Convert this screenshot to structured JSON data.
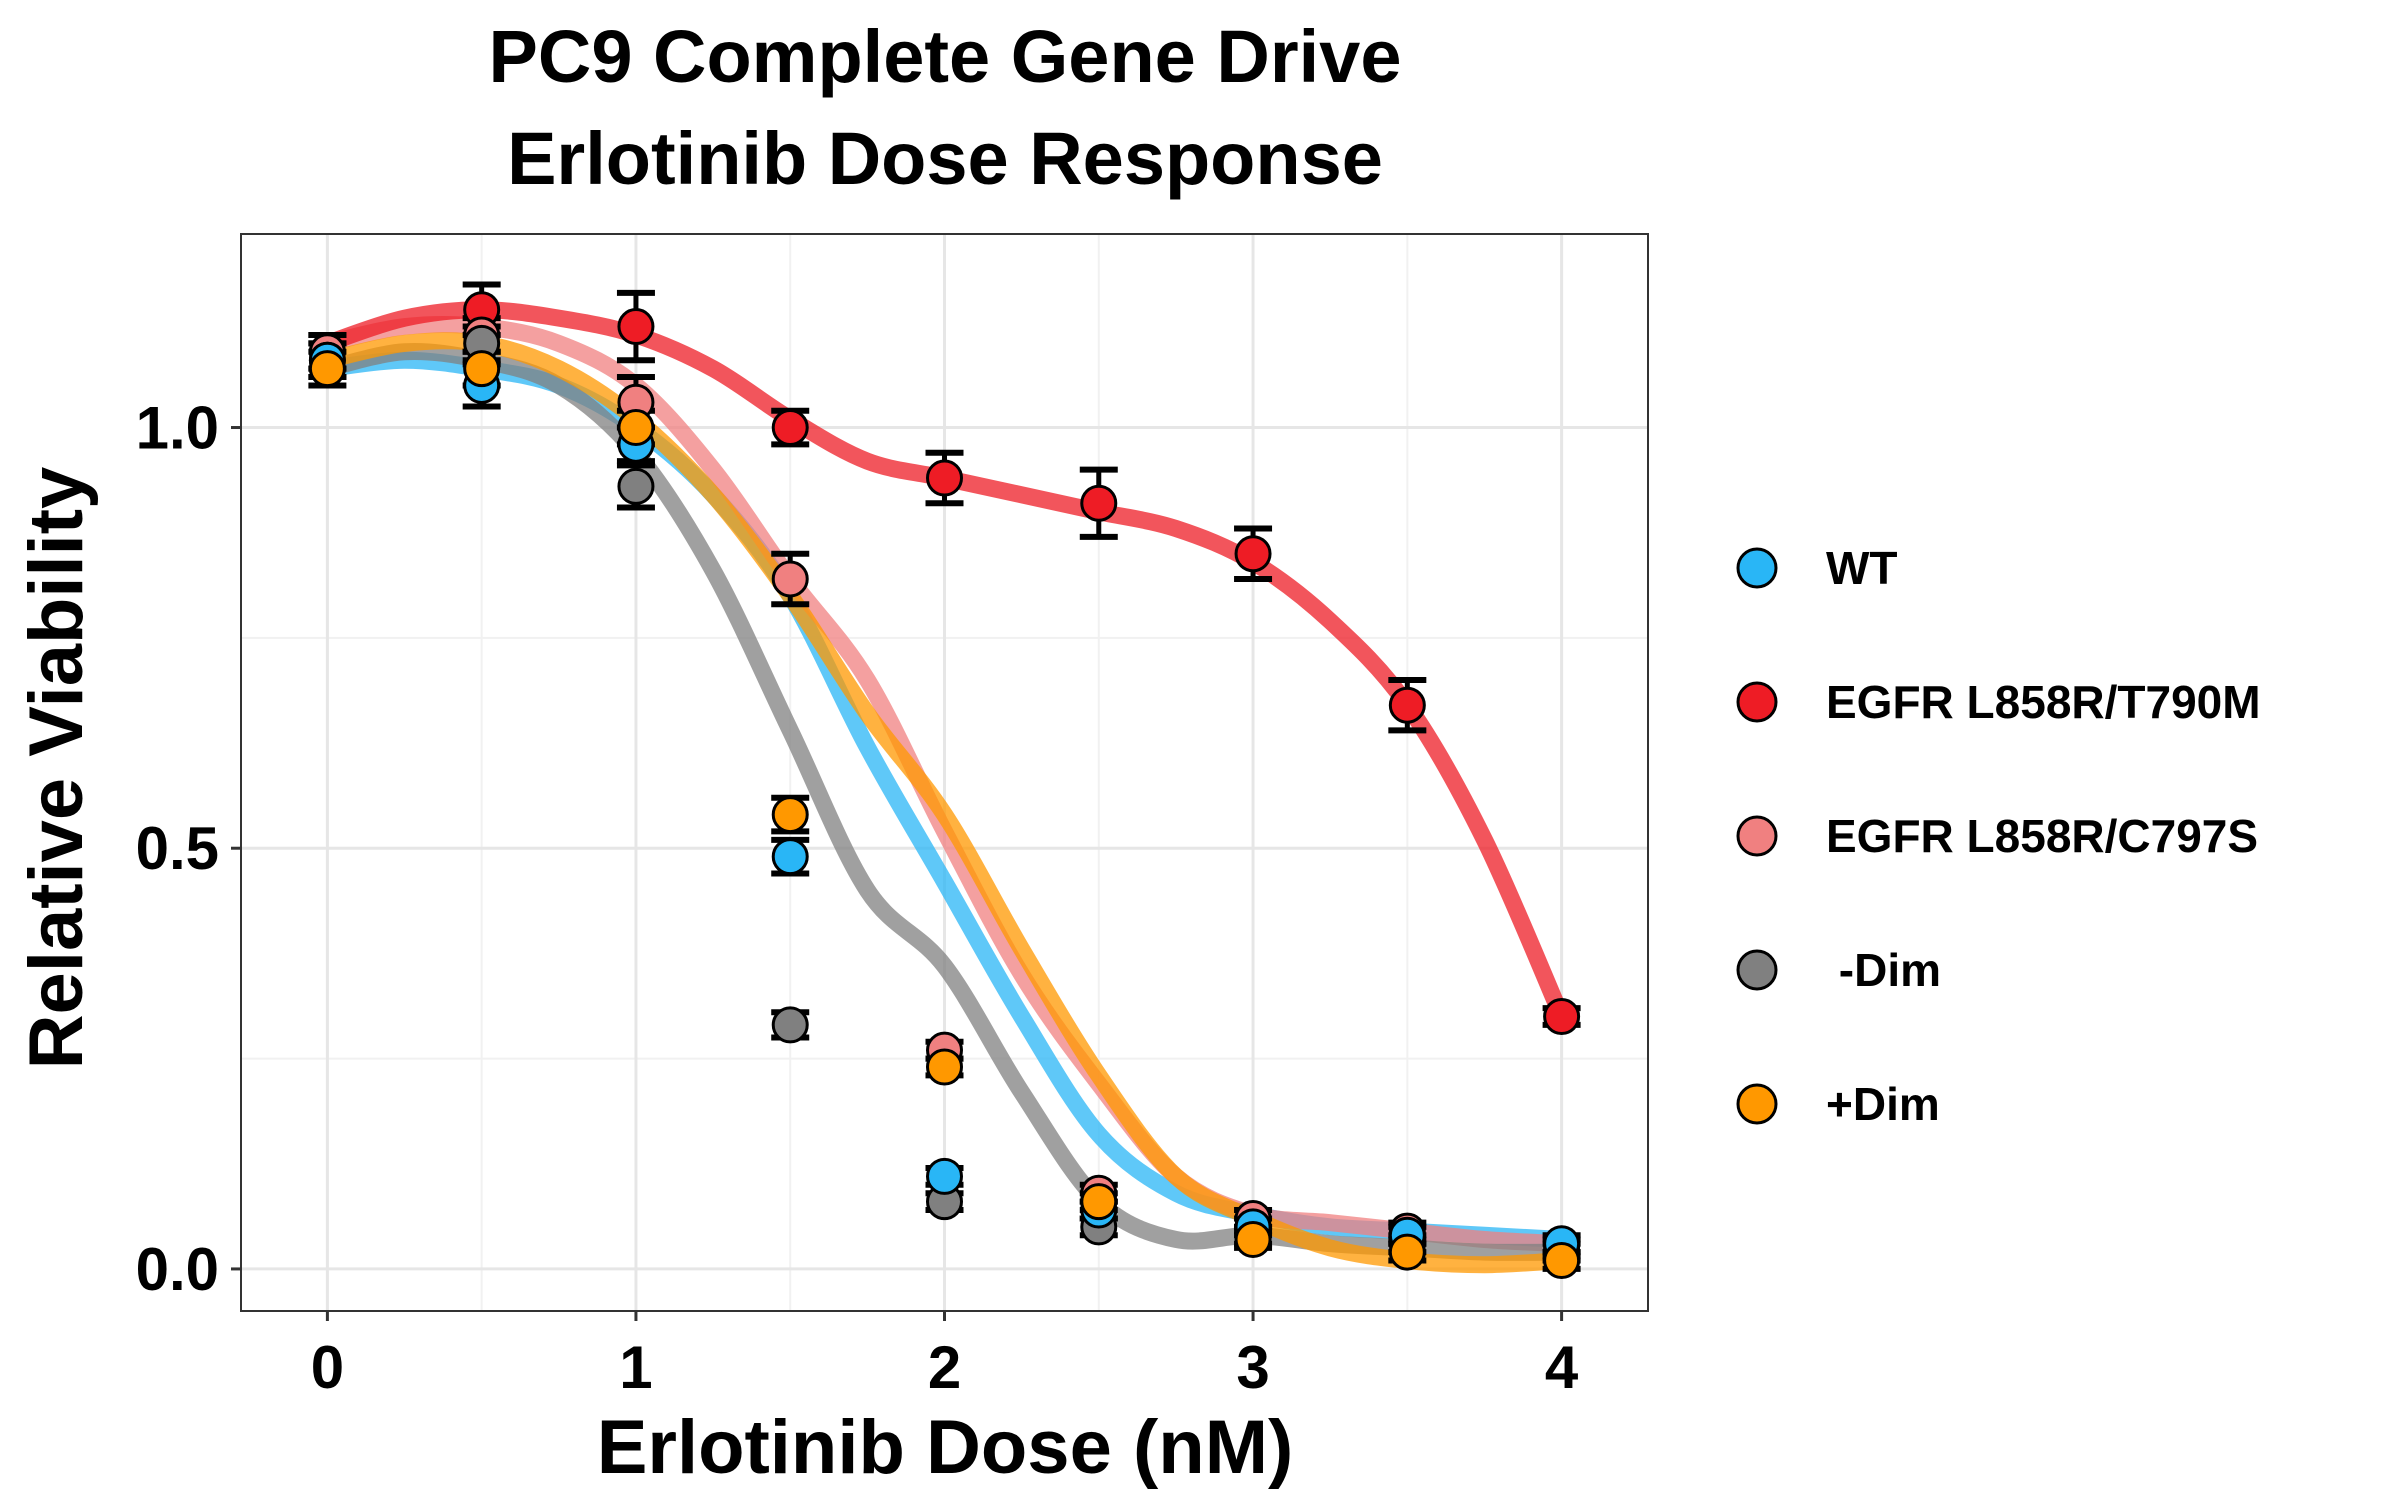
{
  "chart_data": {
    "type": "scatter",
    "title": [
      "PC9 Complete Gene Drive",
      "Erlotinib Dose Response"
    ],
    "xlabel": "Erlotinib Dose (nM)",
    "ylabel": "Relative Viability",
    "xlim": [
      -0.28,
      4.28
    ],
    "ylim": [
      -0.05,
      1.23
    ],
    "xticks": [
      0,
      1,
      2,
      3,
      4
    ],
    "xtick_labels": [
      "0",
      "1",
      "2",
      "3",
      "4"
    ],
    "yticks": [
      0.0,
      0.5,
      1.0
    ],
    "ytick_labels": [
      "0.0",
      "0.5",
      "1.0"
    ],
    "grid": true,
    "legend_position": "right",
    "x": [
      0,
      0.5,
      1,
      1.5,
      2,
      2.5,
      3,
      3.5,
      4
    ],
    "series": [
      {
        "name": "WT",
        "color": "#29B6F6",
        "values": [
          1.08,
          1.05,
          0.98,
          0.49,
          0.11,
          0.07,
          0.05,
          0.04,
          0.03
        ],
        "errors": [
          0.02,
          0.025,
          0.02,
          0.02,
          0.01,
          0.01,
          0.01,
          0.01,
          0.01
        ],
        "smooth": [
          1.07,
          1.08,
          1.07,
          1.05,
          1.0,
          0.92,
          0.8,
          0.62,
          0.46,
          0.3,
          0.16,
          0.09,
          0.065,
          0.05,
          0.045,
          0.04,
          0.035
        ]
      },
      {
        "name": "EGFR L858R/T790M",
        "color": "#EE1C25",
        "values": [
          1.09,
          1.14,
          1.12,
          1.0,
          0.94,
          0.91,
          0.85,
          0.67,
          0.3
        ],
        "errors": [
          0.02,
          0.03,
          0.04,
          0.02,
          0.03,
          0.04,
          0.03,
          0.03,
          0.01
        ],
        "smooth": [
          1.1,
          1.13,
          1.14,
          1.13,
          1.11,
          1.07,
          1.01,
          0.96,
          0.94,
          0.92,
          0.9,
          0.88,
          0.84,
          0.77,
          0.67,
          0.51,
          0.3
        ]
      },
      {
        "name": "EGFR L858R/C797S",
        "color": "#F08080",
        "values": [
          1.09,
          1.11,
          1.03,
          0.82,
          0.26,
          0.09,
          0.06,
          0.045,
          0.025
        ],
        "errors": [
          0.02,
          0.02,
          0.03,
          0.03,
          0.01,
          0.01,
          0.01,
          0.01,
          0.01
        ],
        "smooth": [
          1.1,
          1.12,
          1.12,
          1.1,
          1.05,
          0.95,
          0.82,
          0.7,
          0.52,
          0.35,
          0.22,
          0.11,
          0.065,
          0.055,
          0.045,
          0.035,
          0.03
        ]
      },
      {
        "name": " -Dim",
        "color": "#808080",
        "values": [
          1.08,
          1.1,
          0.93,
          0.29,
          0.08,
          0.05,
          0.04,
          0.03,
          0.02
        ],
        "errors": [
          0.02,
          0.02,
          0.025,
          0.015,
          0.01,
          0.01,
          0.01,
          0.01,
          0.01
        ],
        "smooth": [
          1.07,
          1.09,
          1.08,
          1.05,
          0.97,
          0.83,
          0.64,
          0.45,
          0.36,
          0.21,
          0.08,
          0.035,
          0.04,
          0.03,
          0.025,
          0.02,
          0.02
        ]
      },
      {
        "name": "+Dim",
        "color": "#FF9800",
        "values": [
          1.07,
          1.07,
          1.0,
          0.54,
          0.24,
          0.08,
          0.035,
          0.02,
          0.01
        ],
        "errors": [
          0.02,
          0.02,
          0.02,
          0.02,
          0.01,
          0.01,
          0.01,
          0.01,
          0.01
        ],
        "smooth": [
          1.08,
          1.1,
          1.1,
          1.07,
          1.01,
          0.92,
          0.8,
          0.66,
          0.54,
          0.38,
          0.23,
          0.11,
          0.06,
          0.025,
          0.01,
          0.005,
          0.01
        ]
      }
    ]
  }
}
